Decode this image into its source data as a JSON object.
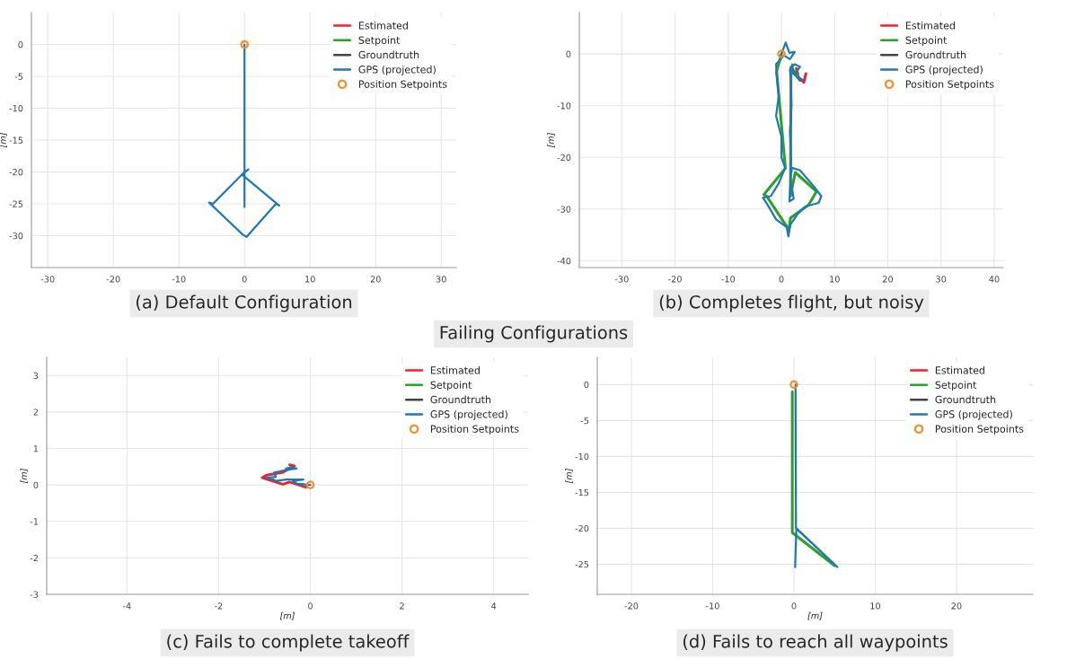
{
  "chart_data": [
    {
      "type": "line",
      "ylabel": "[m]",
      "annotations": [
        "(a) Default Configuration"
      ],
      "xlim": [
        -32.5,
        32.3
      ],
      "ylim": [
        -35,
        5
      ],
      "xticks": [
        -30,
        -20,
        -10,
        0,
        10,
        20,
        30
      ],
      "yticks": [
        -30,
        -25,
        -20,
        -15,
        -10,
        -5,
        0
      ],
      "grid": true,
      "legend": "top right",
      "series": [
        {
          "name": "Estimated",
          "color": "#e8262e"
        },
        {
          "name": "Setpoint",
          "color": "#2ca02c"
        },
        {
          "name": "Groundtruth",
          "color": "#444444"
        },
        {
          "name": "GPS (projected)",
          "color": "#1f77b4",
          "x": [
            0,
            0,
            0.6,
            -0.4,
            5.3,
            4.8,
            0.3,
            -0.3,
            -5.4,
            -4.8,
            0,
            0
          ],
          "values": [
            0,
            -20,
            -19.6,
            -20.4,
            -25.3,
            -25,
            -30.2,
            -29.8,
            -24.8,
            -25,
            -20,
            -25.5
          ]
        },
        {
          "name": "Position Setpoints",
          "type": "scatter",
          "marker": "circle",
          "color": "#f28e2b",
          "x": [
            0
          ],
          "values": [
            0
          ]
        }
      ]
    },
    {
      "type": "line",
      "ylabel": "[m]",
      "annotations": [
        "(b) Completes flight, but noisy"
      ],
      "xlim": [
        -38,
        41.7
      ],
      "ylim": [
        -41.3,
        8
      ],
      "xticks": [
        -30,
        -20,
        -10,
        0,
        10,
        20,
        30,
        40
      ],
      "yticks": [
        -40,
        -30,
        -20,
        -10,
        0
      ],
      "grid": true,
      "legend": "top right",
      "series": [
        {
          "name": "Estimated",
          "color": "#e8262e",
          "x": [
            2.8,
            3.2,
            4.2,
            4.6
          ],
          "values": [
            -2.8,
            -4.5,
            -5.5,
            -3.8
          ]
        },
        {
          "name": "Setpoint",
          "color": "#2ca02c",
          "x": [
            0,
            -0.9,
            0.75,
            -3.3,
            -2.7,
            1.4,
            1.7,
            5.1,
            6.6,
            2.6,
            1.7,
            1.8,
            3.5
          ],
          "values": [
            0,
            -3.4,
            -22.1,
            -27.2,
            -27.6,
            -34,
            -31.7,
            -29.2,
            -26.6,
            -22.9,
            -27.5,
            -2.5,
            -5
          ]
        },
        {
          "name": "Groundtruth",
          "color": "#444444"
        },
        {
          "name": "GPS (projected)",
          "color": "#1f77b4",
          "x": [
            0,
            0.8,
            1.5,
            2.5,
            1.6,
            0.5,
            -1,
            -0.9,
            -0.5,
            -1,
            0,
            0,
            0.7,
            -0.5,
            -2,
            -3.5,
            -2.7,
            -1,
            1,
            1.3,
            1.7,
            3,
            4.5,
            7,
            7.5,
            6,
            3.5,
            2,
            1.7,
            2.3,
            1.5,
            1.7,
            1.8,
            1.6,
            1.9,
            1.8,
            1.6,
            2.5,
            3.5,
            2.5,
            3.5,
            4,
            3,
            2.2,
            2
          ],
          "values": [
            0,
            2.2,
            0.2,
            0.4,
            -1,
            -0.3,
            -2,
            -4,
            -8,
            -12,
            -16,
            -20,
            -22,
            -25,
            -27.5,
            -27.8,
            -29,
            -32,
            -33.5,
            -35.3,
            -33,
            -31,
            -29.5,
            -28.8,
            -27.5,
            -25.5,
            -22.5,
            -22,
            -24,
            -28,
            -28.5,
            -25,
            -20,
            -15,
            -10,
            -6,
            -3,
            -2,
            -2.5,
            -4,
            -5.2,
            -5,
            -4.5,
            -3.8,
            -2
          ]
        },
        {
          "name": "Position Setpoints",
          "type": "scatter",
          "marker": "circle",
          "color": "#f28e2b",
          "x": [
            0
          ],
          "values": [
            0
          ]
        }
      ]
    },
    {
      "type": "line",
      "xlabel": "[m]",
      "ylabel": "[m]",
      "annotations": [
        "(c) Fails to complete takeoff",
        "Failing Configurations"
      ],
      "xlim": [
        -5.75,
        4.75
      ],
      "ylim": [
        -3,
        3.5
      ],
      "xticks": [
        -4,
        -2,
        0,
        2,
        4
      ],
      "yticks": [
        -3,
        -2,
        -1,
        0,
        1,
        2,
        3
      ],
      "grid": true,
      "legend": "top right",
      "series": [
        {
          "name": "Estimated",
          "color": "#e8262e",
          "x": [
            -0.1,
            -0.45,
            -0.6,
            -1.05,
            -0.95,
            -0.6,
            -0.35,
            -0.45
          ],
          "values": [
            -0.06,
            0.08,
            0.02,
            0.2,
            0.27,
            0.35,
            0.52,
            0.55
          ]
        },
        {
          "name": "Setpoint",
          "color": "#2ca02c"
        },
        {
          "name": "Groundtruth",
          "color": "#444444"
        },
        {
          "name": "GPS (projected)",
          "color": "#1f77b4",
          "x": [
            0,
            -0.3,
            -0.38,
            -0.15,
            -0.53,
            -0.75,
            -0.83,
            -0.98,
            -0.75,
            -0.79,
            -0.53,
            -0.3,
            -0.41,
            -0.53
          ],
          "values": [
            0,
            0.04,
            0.11,
            0.15,
            0.15,
            0.11,
            0.17,
            0.19,
            0.22,
            0.34,
            0.41,
            0.45,
            0.49,
            0.45
          ]
        },
        {
          "name": "Position Setpoints",
          "type": "scatter",
          "marker": "circle",
          "color": "#f28e2b",
          "x": [
            0
          ],
          "values": [
            0
          ]
        }
      ]
    },
    {
      "type": "line",
      "xlabel": "[m]",
      "ylabel": "[m]",
      "annotations": [
        "(d) Fails to reach all waypoints"
      ],
      "xlim": [
        -24.2,
        29.4
      ],
      "ylim": [
        -29.2,
        3.8
      ],
      "xticks": [
        -20,
        -10,
        0,
        10,
        20
      ],
      "yticks": [
        -25,
        -20,
        -15,
        -10,
        -5,
        0
      ],
      "grid": true,
      "legend": "top right",
      "series": [
        {
          "name": "Estimated",
          "color": "#e8262e"
        },
        {
          "name": "Setpoint",
          "color": "#2ca02c",
          "x": [
            -0.2,
            -0.2,
            5.0
          ],
          "values": [
            -1,
            -20.6,
            -25.2
          ]
        },
        {
          "name": "Groundtruth",
          "color": "#444444"
        },
        {
          "name": "GPS (projected)",
          "color": "#1f77b4",
          "x": [
            0.2,
            0.25,
            5.35,
            0.3,
            0.15
          ],
          "values": [
            0,
            -20,
            -25.4,
            -20,
            -25.4
          ]
        },
        {
          "name": "Position Setpoints",
          "type": "scatter",
          "marker": "circle",
          "color": "#f28e2b",
          "x": [
            0
          ],
          "values": [
            0
          ]
        }
      ]
    }
  ]
}
